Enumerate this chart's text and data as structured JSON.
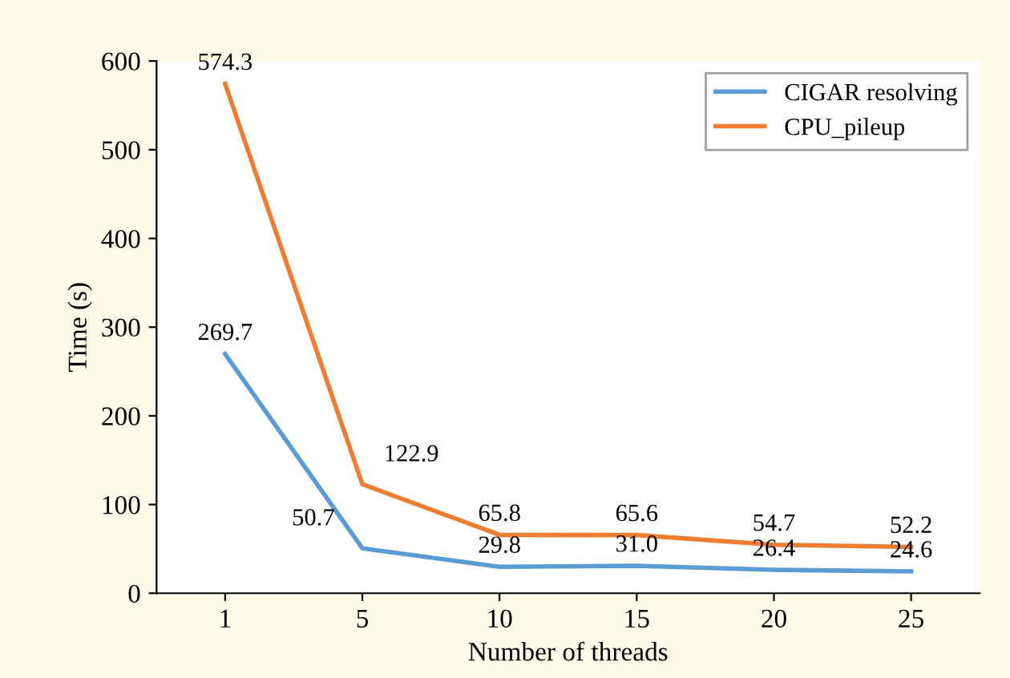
{
  "chart_data": {
    "type": "line",
    "xlabel": "Number of threads",
    "ylabel": "Time (s)",
    "categories": [
      "1",
      "5",
      "10",
      "15",
      "20",
      "25"
    ],
    "series": [
      {
        "name": "CIGAR resolving",
        "color": "#5b9bd5",
        "values": [
          269.7,
          50.7,
          29.8,
          31.0,
          26.4,
          24.6
        ],
        "value_labels": [
          "269.7",
          "50.7",
          "29.8",
          "31.0",
          "26.4",
          "24.6"
        ]
      },
      {
        "name": "CPU_pileup",
        "color": "#ed7d31",
        "values": [
          574.3,
          122.9,
          65.8,
          65.6,
          54.7,
          52.2
        ],
        "value_labels": [
          "574.3",
          "122.9",
          "65.8",
          "65.6",
          "54.7",
          "52.2"
        ]
      }
    ],
    "ylim": [
      0,
      600
    ],
    "yticks": [
      0,
      100,
      200,
      300,
      400,
      500,
      600
    ],
    "grid": false,
    "legend": "top right",
    "marker": "none",
    "line_style": "solid"
  }
}
